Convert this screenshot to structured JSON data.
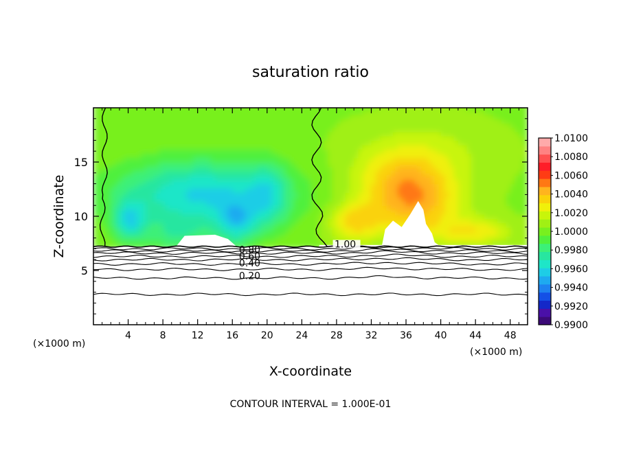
{
  "chart_data": {
    "type": "heatmap",
    "title": "saturation ratio",
    "xlabel": "X-coordinate",
    "ylabel": "Z-coordinate",
    "x_unit_label": "(×1000 m)",
    "footer": "CONTOUR INTERVAL = 1.000E-01",
    "xlim": [
      0,
      50
    ],
    "ylim": [
      0,
      20
    ],
    "x_ticks": [
      4,
      8,
      12,
      16,
      20,
      24,
      28,
      32,
      36,
      40,
      44,
      48
    ],
    "y_ticks": [
      5,
      10,
      15
    ],
    "colorbar": {
      "min": 0.99,
      "max": 1.01,
      "labels": [
        "1.0100",
        "1.0080",
        "1.0060",
        "1.0040",
        "1.0020",
        "1.0000",
        "0.9980",
        "0.9960",
        "0.9940",
        "0.9920",
        "0.9900"
      ],
      "colors": [
        "#3c0a78",
        "#4a10a8",
        "#1428c8",
        "#1450e6",
        "#1e82f0",
        "#1eaaf0",
        "#1ecde6",
        "#1ee6c8",
        "#28e6a0",
        "#3cf078",
        "#50f03c",
        "#78f01e",
        "#a0f014",
        "#c8f50a",
        "#f0f00a",
        "#fad20a",
        "#ffb41e",
        "#ff7814",
        "#ff3c14",
        "#ff1e28",
        "#ff5050",
        "#ff8282",
        "#ffaaaa"
      ]
    },
    "contour_levels": [
      {
        "label": "0.20",
        "z": 4.3
      },
      {
        "label": "0.40",
        "z": 5.6
      },
      {
        "label": "0.60",
        "z": 6.3
      },
      {
        "label": "0.80",
        "z": 6.8
      },
      {
        "label": "1.00",
        "z": 7.1
      }
    ],
    "lower_contours_z": [
      2.8,
      4.3,
      5.1,
      5.6,
      6.0,
      6.3,
      6.6,
      6.8,
      7.0
    ],
    "cloud_base_z": 7.2,
    "saturation_boundaries_x": [
      1.3,
      25.7
    ]
  }
}
